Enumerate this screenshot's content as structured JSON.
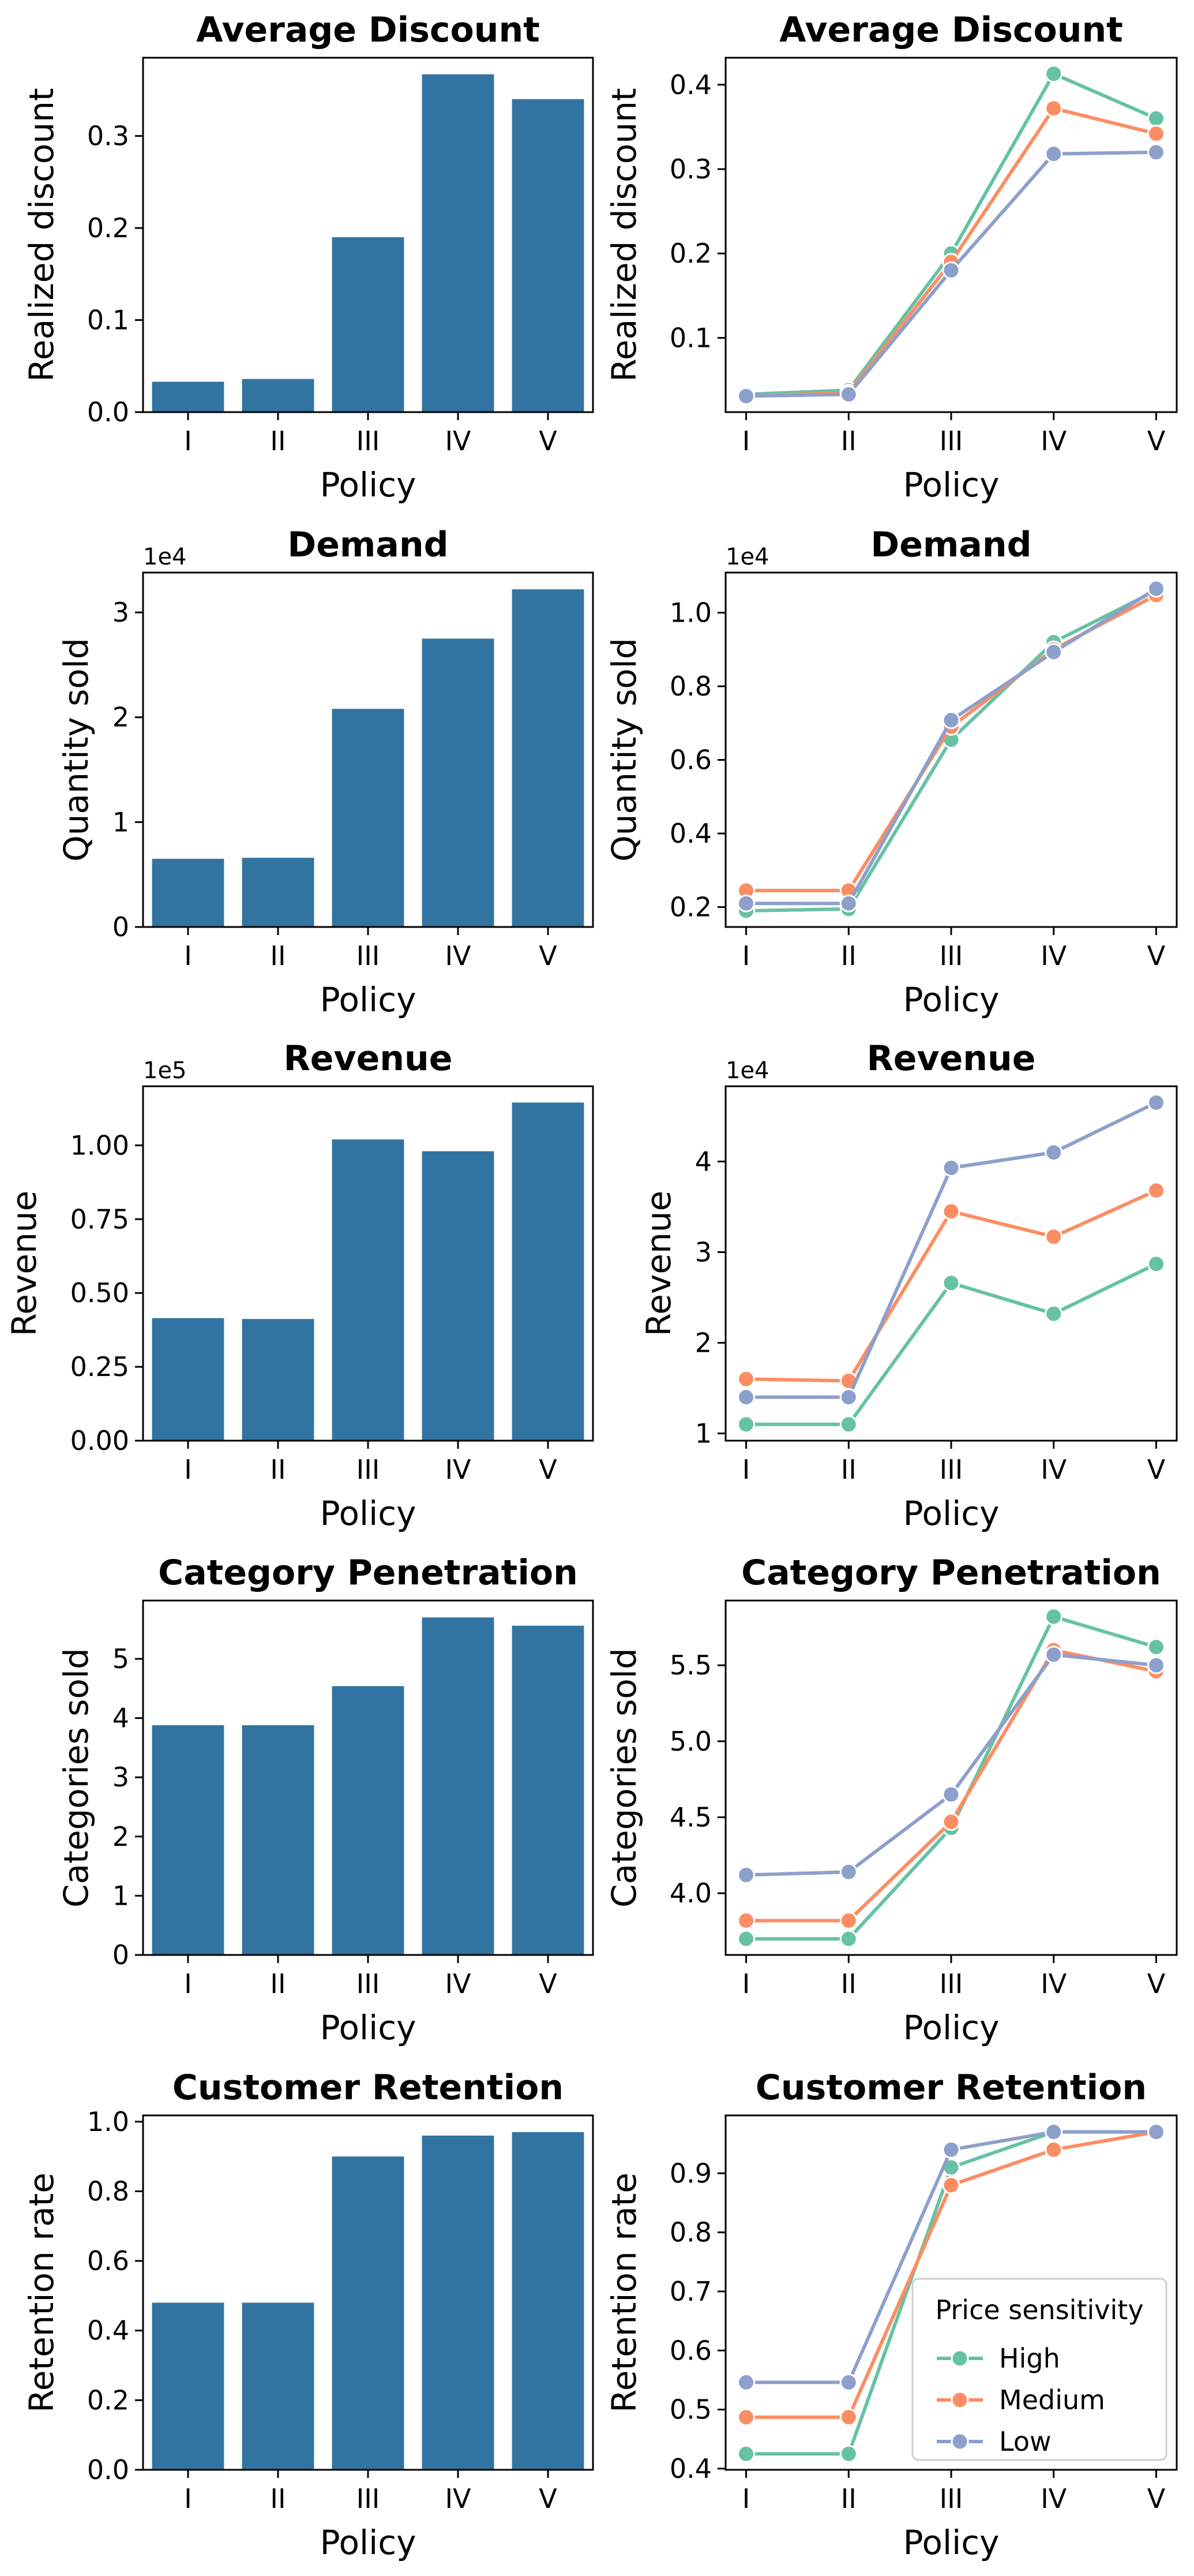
{
  "chart_data": [
    {
      "type": "bar",
      "title": "Average Discount",
      "xlabel": "Policy",
      "ylabel": "Realized discount",
      "categories": [
        "I",
        "II",
        "III",
        "IV",
        "V"
      ],
      "values": [
        0.033,
        0.036,
        0.19,
        0.367,
        0.34
      ],
      "ylim": [
        0,
        0.385
      ],
      "yticks": [
        0.0,
        0.1,
        0.2,
        0.3
      ],
      "ytick_labels": [
        "0.0",
        "0.1",
        "0.2",
        "0.3"
      ],
      "offset": "",
      "color": "#3274a1"
    },
    {
      "type": "line",
      "title": "Average Discount",
      "xlabel": "Policy",
      "ylabel": "Realized discount",
      "categories": [
        "I",
        "II",
        "III",
        "IV",
        "V"
      ],
      "series": [
        {
          "name": "High",
          "color": "#66c2a5",
          "values": [
            0.033,
            0.038,
            0.2,
            0.413,
            0.36
          ]
        },
        {
          "name": "Medium",
          "color": "#fc8d62",
          "values": [
            0.031,
            0.035,
            0.19,
            0.372,
            0.342
          ]
        },
        {
          "name": "Low",
          "color": "#8da0cb",
          "values": [
            0.031,
            0.033,
            0.18,
            0.318,
            0.32
          ]
        }
      ],
      "ylim": [
        0.012,
        0.432
      ],
      "yticks": [
        0.1,
        0.2,
        0.3,
        0.4
      ],
      "ytick_labels": [
        "0.1",
        "0.2",
        "0.3",
        "0.4"
      ],
      "offset": ""
    },
    {
      "type": "bar",
      "title": "Demand",
      "xlabel": "Policy",
      "ylabel": "Quantity sold",
      "categories": [
        "I",
        "II",
        "III",
        "IV",
        "V"
      ],
      "values": [
        0.65,
        0.66,
        2.08,
        2.75,
        3.22
      ],
      "ylim": [
        0,
        3.38
      ],
      "yticks": [
        0,
        1,
        2,
        3
      ],
      "ytick_labels": [
        "0",
        "1",
        "2",
        "3"
      ],
      "offset": "1e4",
      "color": "#3274a1"
    },
    {
      "type": "line",
      "title": "Demand",
      "xlabel": "Policy",
      "ylabel": "Quantity sold",
      "categories": [
        "I",
        "II",
        "III",
        "IV",
        "V"
      ],
      "series": [
        {
          "name": "High",
          "color": "#66c2a5",
          "values": [
            0.19,
            0.195,
            0.655,
            0.92,
            1.06
          ]
        },
        {
          "name": "Medium",
          "color": "#fc8d62",
          "values": [
            0.245,
            0.245,
            0.69,
            0.9,
            1.048
          ]
        },
        {
          "name": "Low",
          "color": "#8da0cb",
          "values": [
            0.21,
            0.21,
            0.708,
            0.893,
            1.065
          ]
        }
      ],
      "ylim": [
        0.146,
        1.109
      ],
      "yticks": [
        0.2,
        0.4,
        0.6,
        0.8,
        1.0
      ],
      "ytick_labels": [
        "0.2",
        "0.4",
        "0.6",
        "0.8",
        "1.0"
      ],
      "offset": "1e4"
    },
    {
      "type": "bar",
      "title": "Revenue",
      "xlabel": "Policy",
      "ylabel": "Revenue",
      "categories": [
        "I",
        "II",
        "III",
        "IV",
        "V"
      ],
      "values": [
        0.415,
        0.412,
        1.02,
        0.98,
        1.145
      ],
      "ylim": [
        0,
        1.2
      ],
      "yticks": [
        0,
        0.25,
        0.5,
        0.75,
        1.0
      ],
      "ytick_labels": [
        "0.00",
        "0.25",
        "0.50",
        "0.75",
        "1.00"
      ],
      "offset": "1e5",
      "color": "#3274a1"
    },
    {
      "type": "line",
      "title": "Revenue",
      "xlabel": "Policy",
      "ylabel": "Revenue",
      "categories": [
        "I",
        "II",
        "III",
        "IV",
        "V"
      ],
      "series": [
        {
          "name": "High",
          "color": "#66c2a5",
          "values": [
            1.1,
            1.1,
            2.66,
            2.32,
            2.87
          ]
        },
        {
          "name": "Medium",
          "color": "#fc8d62",
          "values": [
            1.6,
            1.58,
            3.45,
            3.17,
            3.68
          ]
        },
        {
          "name": "Low",
          "color": "#8da0cb",
          "values": [
            1.4,
            1.4,
            3.93,
            4.1,
            4.65
          ]
        }
      ],
      "ylim": [
        0.92,
        4.83
      ],
      "yticks": [
        1,
        2,
        3,
        4
      ],
      "ytick_labels": [
        "1",
        "2",
        "3",
        "4"
      ],
      "offset": "1e4"
    },
    {
      "type": "bar",
      "title": "Category Penetration",
      "xlabel": "Policy",
      "ylabel": "Categories sold",
      "categories": [
        "I",
        "II",
        "III",
        "IV",
        "V"
      ],
      "values": [
        3.88,
        3.88,
        4.54,
        5.7,
        5.56
      ],
      "ylim": [
        0,
        5.985
      ],
      "yticks": [
        0,
        1,
        2,
        3,
        4,
        5
      ],
      "ytick_labels": [
        "0",
        "1",
        "2",
        "3",
        "4",
        "5"
      ],
      "offset": "",
      "color": "#3274a1"
    },
    {
      "type": "line",
      "title": "Category Penetration",
      "xlabel": "Policy",
      "ylabel": "Categories sold",
      "categories": [
        "I",
        "II",
        "III",
        "IV",
        "V"
      ],
      "series": [
        {
          "name": "High",
          "color": "#66c2a5",
          "values": [
            3.7,
            3.7,
            4.43,
            5.82,
            5.62
          ]
        },
        {
          "name": "Medium",
          "color": "#fc8d62",
          "values": [
            3.82,
            3.82,
            4.47,
            5.6,
            5.46
          ]
        },
        {
          "name": "Low",
          "color": "#8da0cb",
          "values": [
            4.12,
            4.14,
            4.65,
            5.57,
            5.5
          ]
        }
      ],
      "ylim": [
        3.594,
        5.926
      ],
      "yticks": [
        4.0,
        4.5,
        5.0,
        5.5
      ],
      "ytick_labels": [
        "4.0",
        "4.5",
        "5.0",
        "5.5"
      ],
      "offset": ""
    },
    {
      "type": "bar",
      "title": "Customer Retention",
      "xlabel": "Policy",
      "ylabel": "Retention rate",
      "categories": [
        "I",
        "II",
        "III",
        "IV",
        "V"
      ],
      "values": [
        0.48,
        0.48,
        0.9,
        0.96,
        0.97
      ],
      "ylim": [
        0,
        1.018
      ],
      "yticks": [
        0,
        0.2,
        0.4,
        0.6,
        0.8,
        1.0
      ],
      "ytick_labels": [
        "0.0",
        "0.2",
        "0.4",
        "0.6",
        "0.8",
        "1.0"
      ],
      "offset": "",
      "color": "#3274a1"
    },
    {
      "type": "line",
      "title": "Customer Retention",
      "xlabel": "Policy",
      "ylabel": "Retention rate",
      "categories": [
        "I",
        "II",
        "III",
        "IV",
        "V"
      ],
      "series": [
        {
          "name": "High",
          "color": "#66c2a5",
          "values": [
            0.425,
            0.425,
            0.91,
            0.97,
            0.97
          ]
        },
        {
          "name": "Medium",
          "color": "#fc8d62",
          "values": [
            0.487,
            0.487,
            0.88,
            0.94,
            0.97
          ]
        },
        {
          "name": "Low",
          "color": "#8da0cb",
          "values": [
            0.546,
            0.546,
            0.94,
            0.97,
            0.97
          ]
        }
      ],
      "ylim": [
        0.398,
        0.998
      ],
      "yticks": [
        0.4,
        0.5,
        0.6,
        0.7,
        0.8,
        0.9
      ],
      "ytick_labels": [
        "0.4",
        "0.5",
        "0.6",
        "0.7",
        "0.8",
        "0.9"
      ],
      "offset": "",
      "legend": {
        "title": "Price sensitivity",
        "placement": "lower-right"
      }
    }
  ]
}
